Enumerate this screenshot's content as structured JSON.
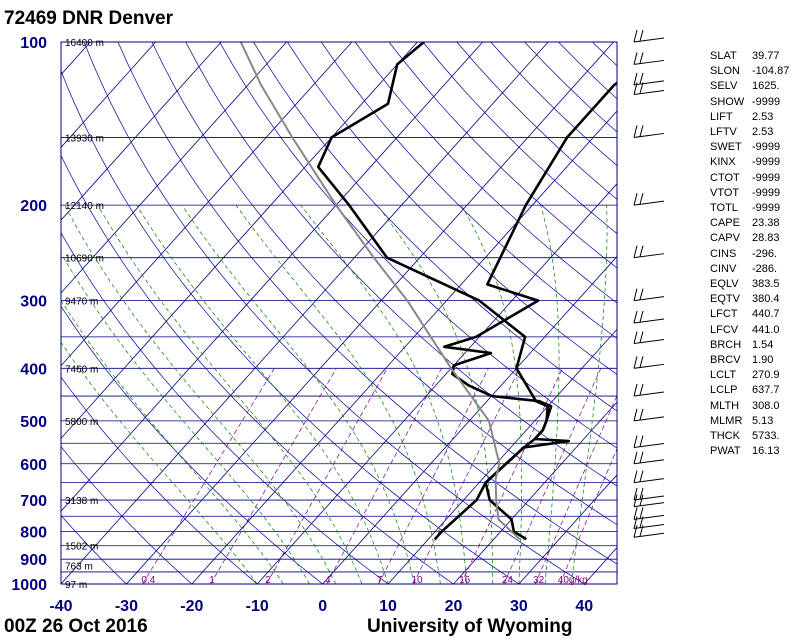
{
  "header": {
    "station": "72469 DNR Denver"
  },
  "footer": {
    "time": "00Z 26 Oct 2016",
    "source": "University of Wyoming"
  },
  "chart_data": {
    "type": "line",
    "title": "72469 DNR Denver",
    "xlabel": "",
    "ylabel": "",
    "x_axis": {
      "label_values": [
        -40,
        -30,
        -20,
        -10,
        0,
        10,
        20,
        30,
        40
      ],
      "unit": "°C",
      "range": [
        -40,
        45
      ]
    },
    "y_axis": {
      "scale": "log",
      "unit": "hPa",
      "range": [
        1000,
        100
      ],
      "label_values": [
        100,
        200,
        300,
        400,
        500,
        600,
        700,
        800,
        900,
        1000
      ]
    },
    "height_labels": [
      {
        "p": 100,
        "text": "16400 m"
      },
      {
        "p": 150,
        "text": "13930 m"
      },
      {
        "p": 200,
        "text": "12140 m"
      },
      {
        "p": 250,
        "text": "10690 m"
      },
      {
        "p": 300,
        "text": "9470 m"
      },
      {
        "p": 400,
        "text": "7460 m"
      },
      {
        "p": 500,
        "text": "5800 m"
      },
      {
        "p": 700,
        "text": "3138 m"
      },
      {
        "p": 850,
        "text": "1502 m"
      },
      {
        "p": 925,
        "text": "763 m"
      },
      {
        "p": 1000,
        "text": "97 m"
      }
    ],
    "mixing_ratio_labels": [
      "0.4",
      "1",
      "2",
      "4",
      "7",
      "10",
      "16",
      "24",
      "32",
      "40g/kg"
    ],
    "series": [
      {
        "name": "",
        "color": "#000000",
        "points": [
          [
            827,
            25.0
          ],
          [
            800,
            22.0
          ],
          [
            760,
            20.0
          ],
          [
            700,
            14.0
          ],
          [
            650,
            11.0
          ],
          [
            600,
            11.5
          ],
          [
            560,
            12.0
          ],
          [
            545,
            18.0
          ],
          [
            540,
            12.5
          ],
          [
            520,
            12.5
          ],
          [
            500,
            11.8
          ],
          [
            470,
            10.5
          ],
          [
            460,
            8.0
          ],
          [
            450,
            0.0
          ],
          [
            430,
            -5.0
          ],
          [
            410,
            -9.0
          ],
          [
            395,
            -10.0
          ],
          [
            375,
            -6.0
          ],
          [
            365,
            -14.0
          ],
          [
            350,
            -10.5
          ],
          [
            300,
            -6.0
          ],
          [
            280,
            -16.0
          ],
          [
            200,
            -21.0
          ],
          [
            150,
            -24.0
          ],
          [
            120,
            -24.0
          ],
          [
            100,
            -21.0
          ]
        ]
      },
      {
        "name": "",
        "color": "#000000",
        "points": [
          [
            827,
            11.0
          ],
          [
            800,
            11.0
          ],
          [
            700,
            12.0
          ],
          [
            650,
            11.0
          ],
          [
            600,
            11.5
          ],
          [
            560,
            12.0
          ],
          [
            540,
            12.5
          ],
          [
            520,
            12.5
          ],
          [
            500,
            11.8
          ],
          [
            470,
            10.0
          ],
          [
            460,
            7.5
          ],
          [
            400,
            0.0
          ],
          [
            350,
            -3.0
          ],
          [
            300,
            -15.0
          ],
          [
            250,
            -35.0
          ],
          [
            200,
            -48.0
          ],
          [
            170,
            -58.0
          ],
          [
            150,
            -60.0
          ],
          [
            130,
            -56.0
          ],
          [
            110,
            -60.0
          ],
          [
            100,
            -59.0
          ]
        ]
      },
      {
        "name": "",
        "color": "#888888",
        "points": [
          [
            827,
            24.0
          ],
          [
            760,
            18.0
          ],
          [
            700,
            15.0
          ],
          [
            640,
            12.0
          ],
          [
            600,
            10.5
          ],
          [
            500,
            3.0
          ],
          [
            400,
            -10.0
          ],
          [
            300,
            -26.0
          ],
          [
            250,
            -37.0
          ],
          [
            200,
            -50.0
          ],
          [
            150,
            -66.0
          ],
          [
            120,
            -78.0
          ],
          [
            100,
            -87.0
          ]
        ]
      }
    ],
    "wind_barbs": [
      {
        "p": 100,
        "icon": "wind-barb-icon"
      },
      {
        "p": 110,
        "icon": "wind-barb-icon"
      },
      {
        "p": 120,
        "icon": "wind-barb-icon"
      },
      {
        "p": 125,
        "icon": "wind-barb-icon"
      },
      {
        "p": 150,
        "icon": "wind-barb-icon"
      },
      {
        "p": 200,
        "icon": "wind-barb-icon"
      },
      {
        "p": 250,
        "icon": "wind-barb-icon"
      },
      {
        "p": 300,
        "icon": "wind-barb-icon"
      },
      {
        "p": 330,
        "icon": "wind-barb-icon"
      },
      {
        "p": 360,
        "icon": "wind-barb-icon"
      },
      {
        "p": 400,
        "icon": "wind-barb-icon"
      },
      {
        "p": 450,
        "icon": "wind-barb-icon"
      },
      {
        "p": 500,
        "icon": "wind-barb-icon"
      },
      {
        "p": 560,
        "icon": "wind-barb-icon"
      },
      {
        "p": 600,
        "icon": "wind-barb-icon"
      },
      {
        "p": 650,
        "icon": "wind-barb-icon"
      },
      {
        "p": 700,
        "icon": "wind-barb-icon"
      },
      {
        "p": 720,
        "icon": "wind-barb-icon"
      },
      {
        "p": 760,
        "icon": "wind-barb-icon"
      },
      {
        "p": 790,
        "icon": "wind-barb-icon"
      },
      {
        "p": 820,
        "icon": "wind-barb-icon"
      }
    ],
    "colors": {
      "axis_label": "#000080",
      "isotherm": "#000080",
      "isobar": "#000080",
      "dry_adiabat": "#0000a0",
      "moist_adiabat": "#008000",
      "mixing_ratio": "#800080"
    }
  },
  "indices": [
    {
      "name": "SLAT",
      "value": "39.77"
    },
    {
      "name": "SLON",
      "value": "-104.87"
    },
    {
      "name": "SELV",
      "value": "1625."
    },
    {
      "name": "SHOW",
      "value": "-9999"
    },
    {
      "name": "LIFT",
      "value": "2.53"
    },
    {
      "name": "LFTV",
      "value": "2.53"
    },
    {
      "name": "SWET",
      "value": "-9999"
    },
    {
      "name": "KINX",
      "value": "-9999"
    },
    {
      "name": "CTOT",
      "value": "-9999"
    },
    {
      "name": "VTOT",
      "value": "-9999"
    },
    {
      "name": "TOTL",
      "value": "-9999"
    },
    {
      "name": "CAPE",
      "value": "23.38"
    },
    {
      "name": "CAPV",
      "value": "28.83"
    },
    {
      "name": "CINS",
      "value": "-296."
    },
    {
      "name": "CINV",
      "value": "-286."
    },
    {
      "name": "EQLV",
      "value": "383.5"
    },
    {
      "name": "EQTV",
      "value": "380.4"
    },
    {
      "name": "LFCT",
      "value": "440.7"
    },
    {
      "name": "LFCV",
      "value": "441.0"
    },
    {
      "name": "BRCH",
      "value": "1.54"
    },
    {
      "name": "BRCV",
      "value": "1.90"
    },
    {
      "name": "LCLT",
      "value": "270.9"
    },
    {
      "name": "LCLP",
      "value": "637.7"
    },
    {
      "name": "MLTH",
      "value": "308.0"
    },
    {
      "name": "MLMR",
      "value": "5.13"
    },
    {
      "name": "THCK",
      "value": "5733."
    },
    {
      "name": "PWAT",
      "value": "16.13"
    }
  ]
}
